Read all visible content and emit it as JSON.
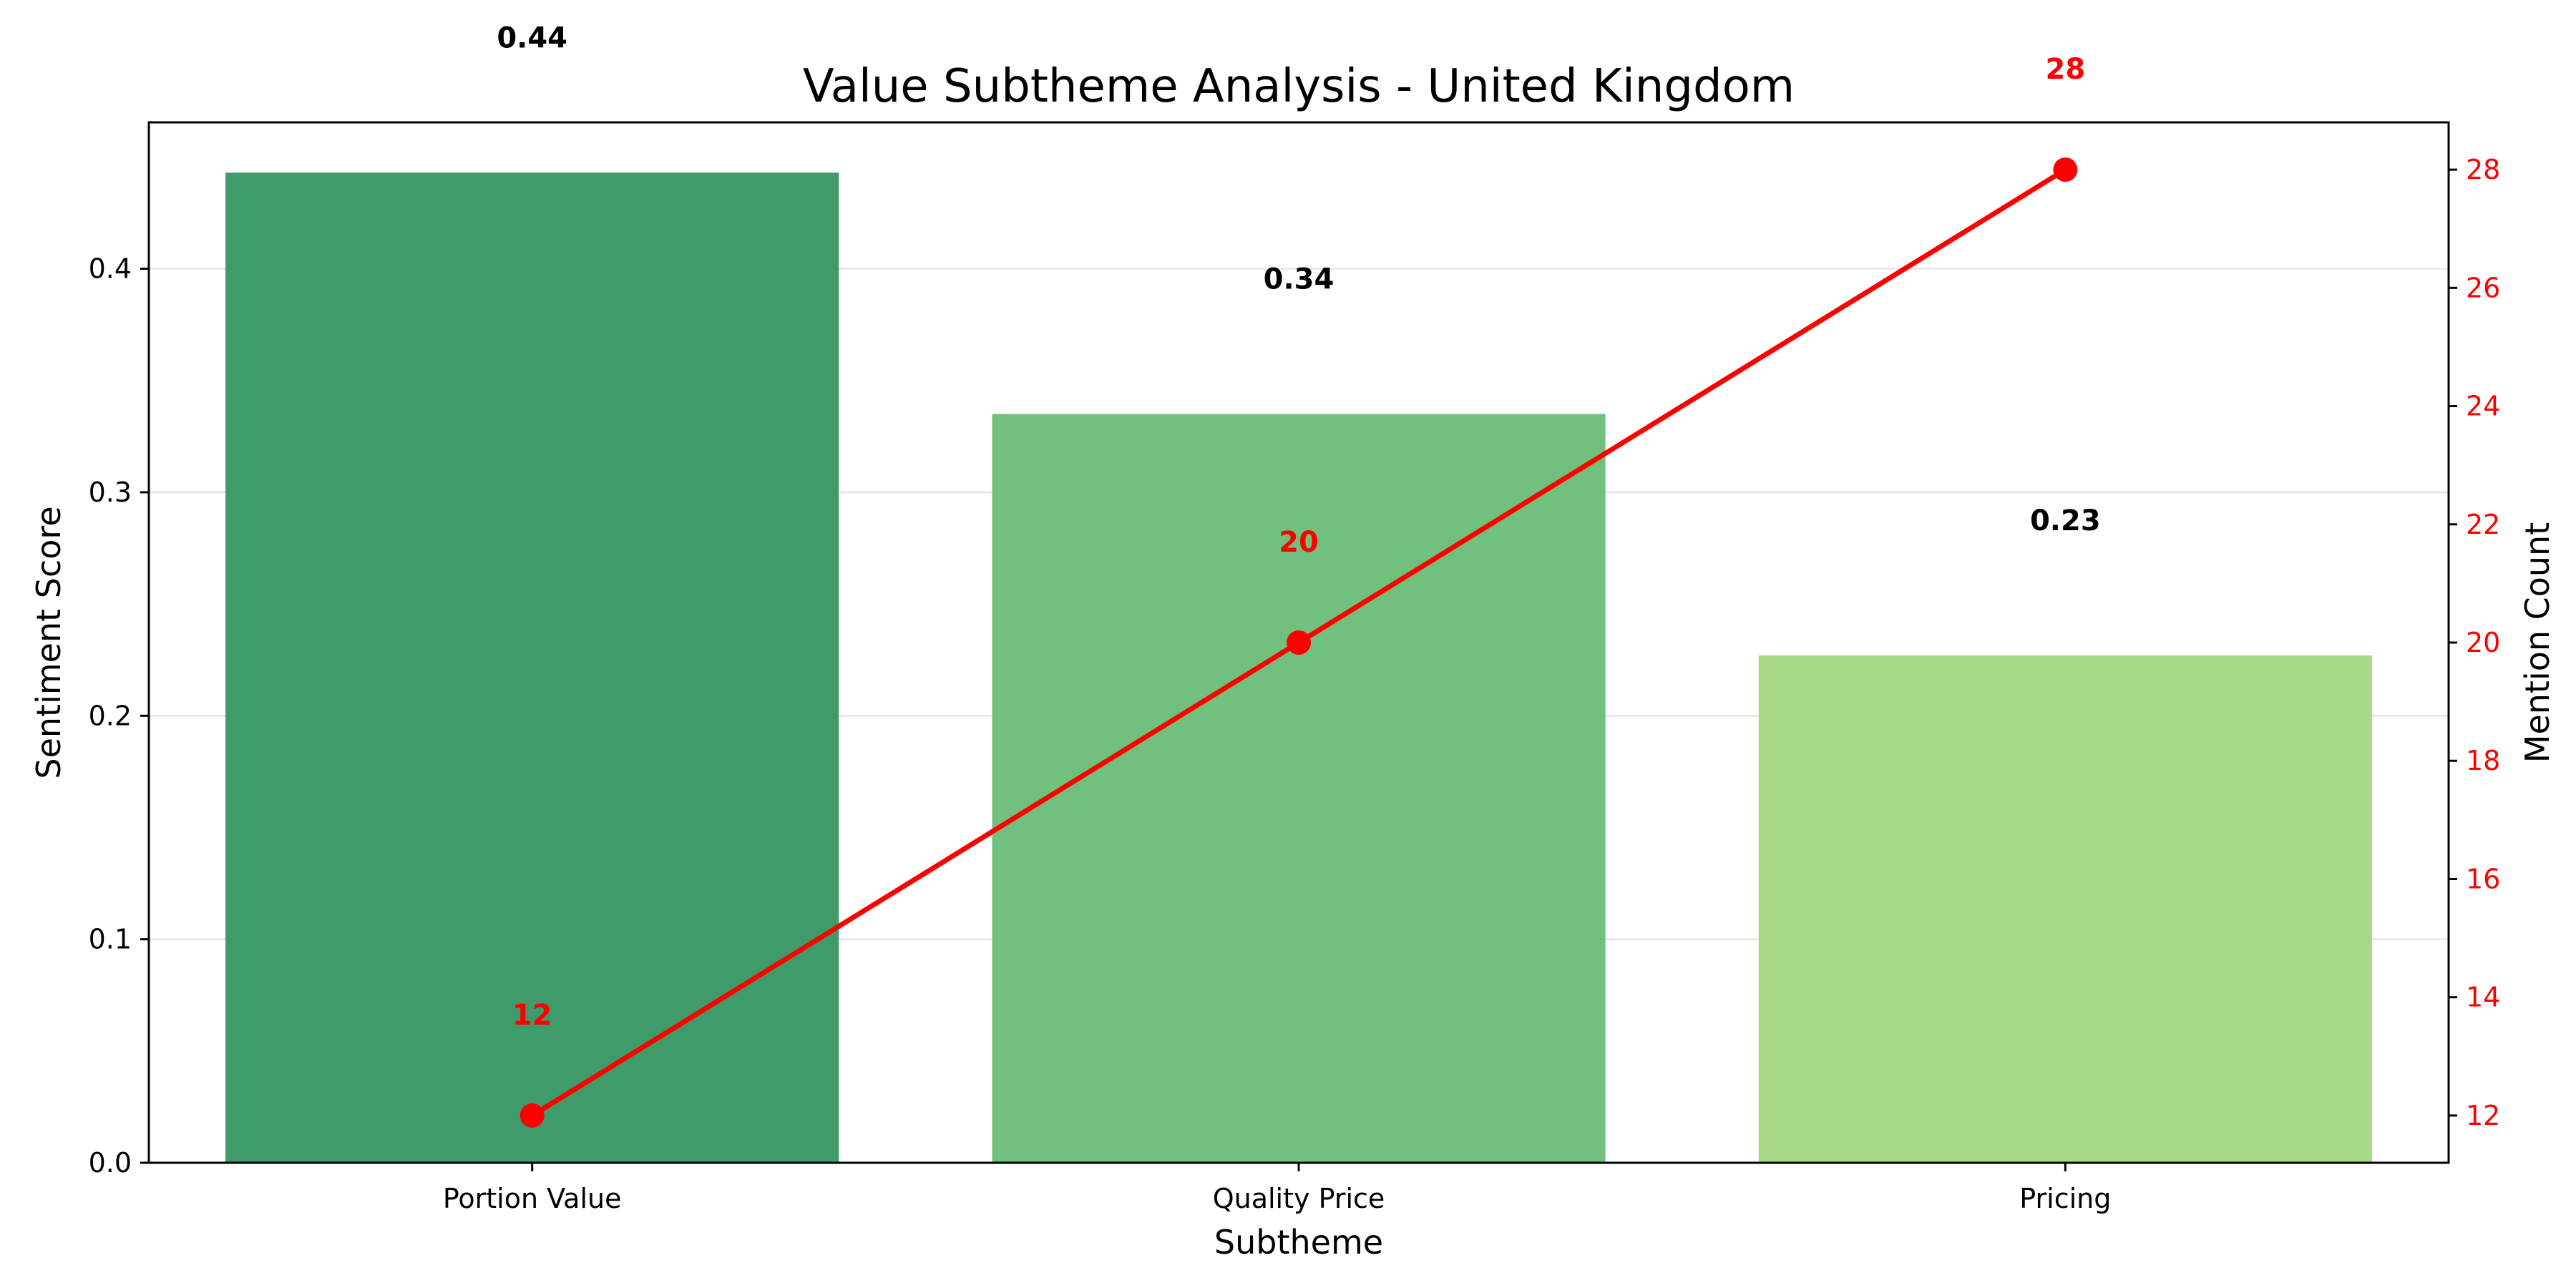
{
  "chart_data": {
    "type": "bar",
    "title": "Value Subtheme Analysis - United Kingdom",
    "xlabel": "Subtheme",
    "ylabel": "Sentiment Score",
    "y2label": "Mention Count",
    "categories": [
      "Portion Value",
      "Quality Price",
      "Pricing"
    ],
    "series": [
      {
        "type": "bar",
        "axis": "left",
        "values": [
          0.443,
          0.335,
          0.227
        ],
        "value_labels": [
          "0.44",
          "0.34",
          "0.23"
        ],
        "colors": [
          "#3f9b6a",
          "#71c07e",
          "#a7d986"
        ]
      },
      {
        "type": "line",
        "axis": "right",
        "values": [
          12,
          20,
          28
        ],
        "value_labels": [
          "12",
          "20",
          "28"
        ],
        "color": "#ff0000"
      }
    ],
    "ylim": [
      0,
      0.4655
    ],
    "y2lim": [
      11.2,
      28.8
    ],
    "yticks": [
      "0.0",
      "0.1",
      "0.2",
      "0.3",
      "0.4"
    ],
    "y2ticks": [
      "12",
      "14",
      "16",
      "18",
      "20",
      "22",
      "24",
      "26",
      "28"
    ],
    "grid": true,
    "colors": {
      "accent": "#ff0000",
      "axis": "#000000",
      "grid": "#e5e5e5"
    }
  }
}
